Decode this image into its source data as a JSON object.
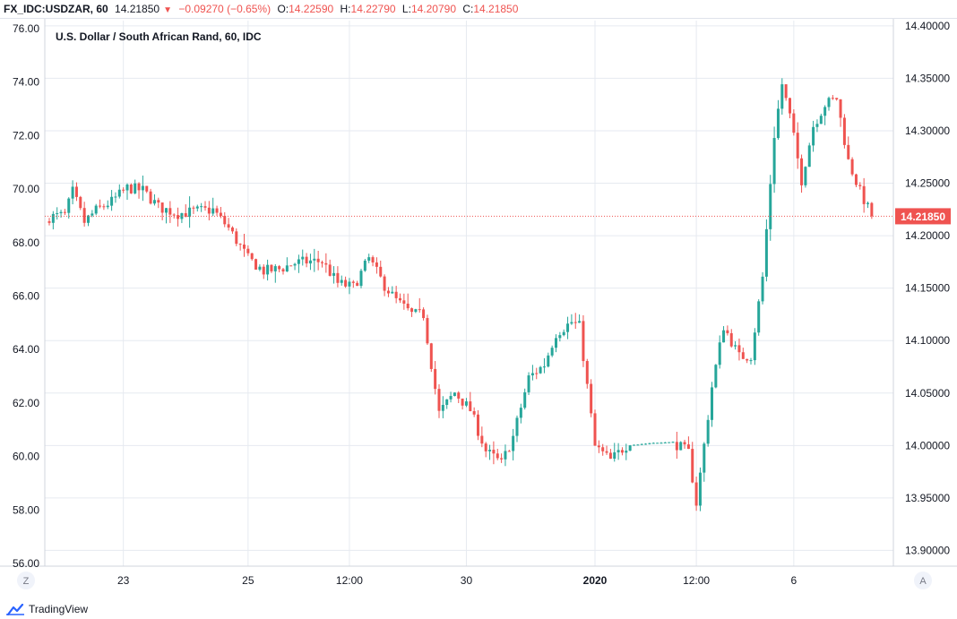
{
  "header": {
    "symbol": "FX_IDC:USDZAR, 60",
    "last": "14.21850",
    "change": "−0.09270 (−0.65%)",
    "o_label": "O:",
    "o_value": "14.22590",
    "h_label": "H:",
    "h_value": "14.22790",
    "l_label": "L:",
    "l_value": "14.20790",
    "c_label": "C:",
    "c_value": "14.21850",
    "down_arrow_icon": "triangle-down"
  },
  "footer": {
    "brand": "TradingView",
    "logo_icon": "tradingview-cloud-icon",
    "left_button": "Z",
    "right_button": "A"
  },
  "colors": {
    "up": "#26a69a",
    "down": "#ef5350",
    "grid": "#e6eaf0",
    "axis_text": "#131722",
    "price_line": "#ef5350",
    "price_badge": "#ef5350"
  },
  "chart_data": {
    "type": "candlestick",
    "title": "U.S. Dollar / South African Rand, 60, IDC",
    "last_price": 14.2185,
    "last_price_label": "14.21850",
    "right_axis": {
      "range": [
        13.885,
        14.405
      ],
      "ticks": [
        14.4,
        14.35,
        14.3,
        14.25,
        14.2,
        14.15,
        14.1,
        14.05,
        14.0,
        13.95,
        13.9
      ],
      "tick_labels": [
        "14.40000",
        "14.35000",
        "14.30000",
        "14.25000",
        "14.20000",
        "14.15000",
        "14.10000",
        "14.05000",
        "14.00000",
        "13.95000",
        "13.90000"
      ]
    },
    "left_axis": {
      "range": [
        55.9,
        76.3
      ],
      "ticks": [
        76,
        74,
        72,
        70,
        68,
        66,
        64,
        62,
        60,
        58,
        56
      ],
      "tick_labels": [
        "76.00",
        "74.00",
        "72.00",
        "70.00",
        "68.00",
        "66.00",
        "64.00",
        "62.00",
        "60.00",
        "58.00",
        "56.00"
      ]
    },
    "x_axis": {
      "ticks": [
        {
          "label": "23",
          "index": 19,
          "bold": false
        },
        {
          "label": "25",
          "index": 51,
          "bold": false
        },
        {
          "label": "12:00",
          "index": 77,
          "bold": false
        },
        {
          "label": "30",
          "index": 107,
          "bold": false
        },
        {
          "label": "2020",
          "index": 140,
          "bold": true
        },
        {
          "label": "12:00",
          "index": 166,
          "bold": false
        },
        {
          "label": "6",
          "index": 191,
          "bold": false
        }
      ]
    },
    "grid": true,
    "ohlc_anchors": [
      [
        0,
        14.2177
      ],
      [
        4,
        14.2195
      ],
      [
        6,
        14.242
      ],
      [
        9,
        14.213
      ],
      [
        12,
        14.2241
      ],
      [
        16,
        14.2325
      ],
      [
        20,
        14.2455
      ],
      [
        24,
        14.2432
      ],
      [
        28,
        14.2274
      ],
      [
        33,
        14.2209
      ],
      [
        38,
        14.2236
      ],
      [
        42,
        14.2246
      ],
      [
        46,
        14.2071
      ],
      [
        51,
        14.1782
      ],
      [
        55,
        14.1663
      ],
      [
        59,
        14.168
      ],
      [
        63,
        14.174
      ],
      [
        67,
        14.1756
      ],
      [
        70,
        14.1753
      ],
      [
        74,
        14.1546
      ],
      [
        78,
        14.1508
      ],
      [
        82,
        14.1781
      ],
      [
        86,
        14.1525
      ],
      [
        89,
        14.1383
      ],
      [
        93,
        14.125
      ],
      [
        96,
        14.1248
      ],
      [
        100,
        14.0308
      ],
      [
        104,
        14.0505
      ],
      [
        108,
        14.0338
      ],
      [
        112,
        13.9949
      ],
      [
        116,
        13.9828
      ],
      [
        119,
        14.0083
      ],
      [
        123,
        14.0646
      ],
      [
        127,
        14.0771
      ],
      [
        130,
        14.1069
      ],
      [
        134,
        14.1177
      ],
      [
        136,
        14.1135
      ],
      [
        140,
        13.999
      ],
      [
        144,
        13.986
      ],
      [
        148,
        14.0
      ],
      [
        154,
        14.002
      ],
      [
        160,
        14.0035
      ],
      [
        164,
        13.9931
      ],
      [
        166,
        13.945
      ],
      [
        170,
        14.0558
      ],
      [
        173,
        14.1139
      ],
      [
        177,
        14.0846
      ],
      [
        180,
        14.0855
      ],
      [
        183,
        14.1604
      ],
      [
        186,
        14.296
      ],
      [
        188,
        14.3445
      ],
      [
        190,
        14.3137
      ],
      [
        193,
        14.2529
      ],
      [
        196,
        14.3047
      ],
      [
        199,
        14.3251
      ],
      [
        202,
        14.3311
      ],
      [
        205,
        14.2709
      ],
      [
        208,
        14.242
      ],
      [
        211,
        14.2185
      ]
    ]
  }
}
